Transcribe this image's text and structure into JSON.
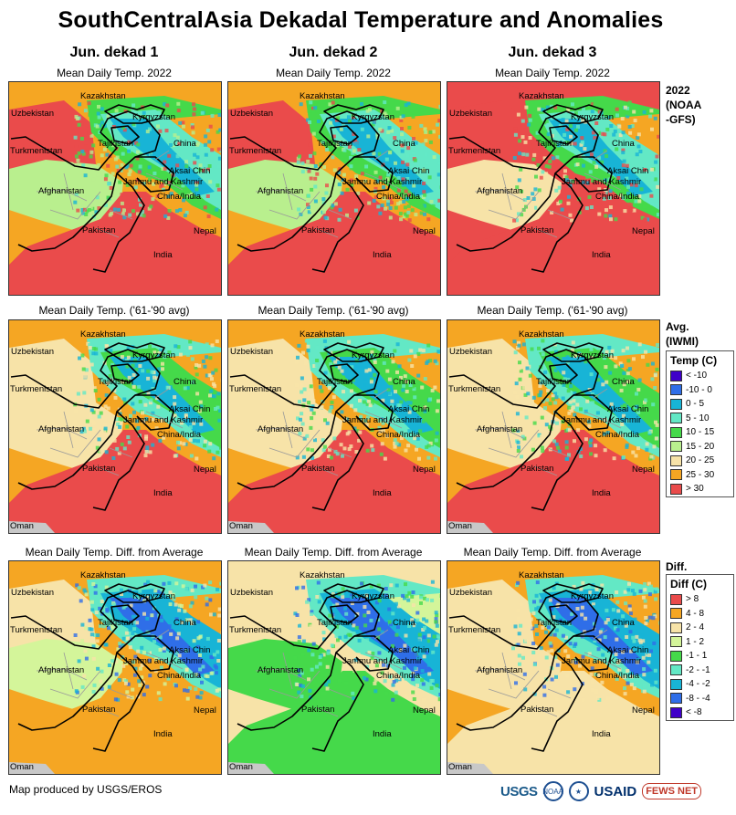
{
  "title": "SouthCentralAsia Dekadal Temperature and Anomalies",
  "columns": [
    {
      "heading": "Jun. dekad 1"
    },
    {
      "heading": "Jun. dekad 2"
    },
    {
      "heading": "Jun. dekad 3"
    }
  ],
  "rows": [
    {
      "subtitle": "Mean Daily Temp. 2022",
      "label_lines": [
        "2022",
        "(NOAA",
        "-GFS)"
      ]
    },
    {
      "subtitle": "Mean Daily Temp. ('61-'90 avg)",
      "label_lines": [
        "Avg.",
        "(IWMI)"
      ]
    },
    {
      "subtitle": "Mean Daily Temp. Diff. from Average",
      "label_lines": [
        "Diff."
      ]
    }
  ],
  "map_labels": {
    "kazakhstan": "Kazakhstan",
    "uzbekistan": "Uzbekistan",
    "kyrgyzstan": "Kyrgyzstan",
    "turkmenistan": "Turkmenistan",
    "tajikistan": "Tajikistan",
    "china": "China",
    "aksai_chin": "Aksai Chin",
    "jammu_kashmir": "Jammu and Kashmir",
    "china_india": "China/India",
    "afghanistan": "Afghanistan",
    "pakistan": "Pakistan",
    "nepal": "Nepal",
    "india": "India",
    "oman": "Oman"
  },
  "temp_legend": {
    "title": "Temp (C)",
    "items": [
      {
        "label": "< -10",
        "color": "#3f00c9"
      },
      {
        "label": "-10 - 0",
        "color": "#2f6ee8"
      },
      {
        "label": "0 - 5",
        "color": "#18b4d6"
      },
      {
        "label": "5 - 10",
        "color": "#63e8c5"
      },
      {
        "label": "10 - 15",
        "color": "#45d94a"
      },
      {
        "label": "15 - 20",
        "color": "#b9ef8e"
      },
      {
        "label": "20 - 25",
        "color": "#f7e3a8"
      },
      {
        "label": "25 - 30",
        "color": "#f5a623"
      },
      {
        "label": "> 30",
        "color": "#ea4b4b"
      }
    ]
  },
  "diff_legend": {
    "title": "Diff (C)",
    "items": [
      {
        "label": "> 8",
        "color": "#ea4b4b"
      },
      {
        "label": "4 - 8",
        "color": "#f5a623"
      },
      {
        "label": "2 - 4",
        "color": "#f7e3a8"
      },
      {
        "label": "1 - 2",
        "color": "#d4f59a"
      },
      {
        "label": "-1 - 1",
        "color": "#45d94a"
      },
      {
        "label": "-2 - -1",
        "color": "#63e8c5"
      },
      {
        "label": "-4 - -2",
        "color": "#18b4d6"
      },
      {
        "label": "-8 - -4",
        "color": "#2f6ee8"
      },
      {
        "label": "< -8",
        "color": "#3f00c9"
      }
    ]
  },
  "footer": {
    "credit": "Map produced by USGS/EROS"
  },
  "logos": {
    "usgs": "USGS",
    "noaa": "NOAA",
    "usaid": "USAID",
    "fews": "FEWS NET"
  }
}
